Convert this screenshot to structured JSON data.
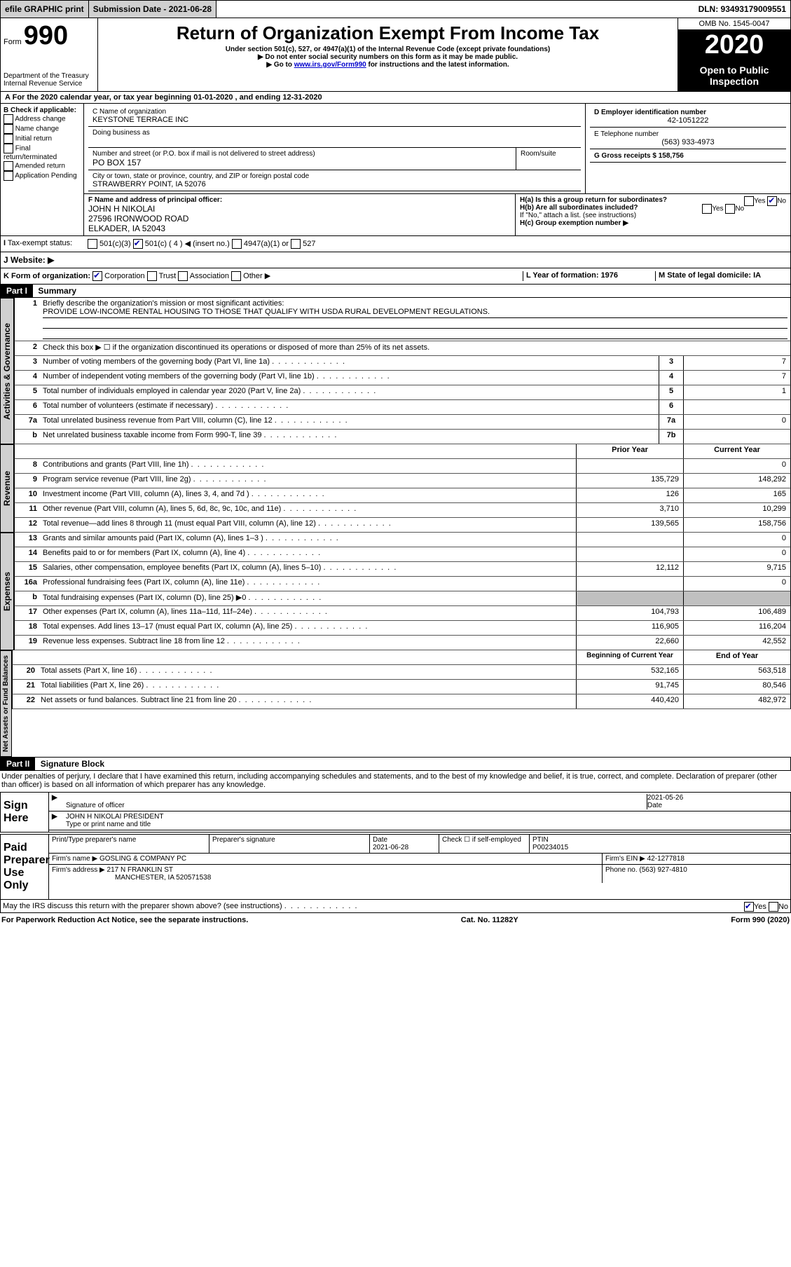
{
  "topbar": {
    "efile": "efile GRAPHIC print",
    "subdate_label": "Submission Date - 2021-06-28",
    "dln": "DLN: 93493179009551"
  },
  "header": {
    "form_label": "Form",
    "form_no": "990",
    "dept": "Department of the Treasury\nInternal Revenue Service",
    "title": "Return of Organization Exempt From Income Tax",
    "subtitle": "Under section 501(c), 527, or 4947(a)(1) of the Internal Revenue Code (except private foundations)",
    "note1": "Do not enter social security numbers on this form as it may be made public.",
    "note2_pre": "Go to ",
    "note2_link": "www.irs.gov/Form990",
    "note2_post": " for instructions and the latest information.",
    "omb": "OMB No. 1545-0047",
    "year": "2020",
    "open": "Open to Public Inspection"
  },
  "sectionA": {
    "period": "For the 2020 calendar year, or tax year beginning 01-01-2020    , and ending 12-31-2020",
    "check_label": "B Check if applicable:",
    "checks": [
      "Address change",
      "Name change",
      "Initial return",
      "Final return/terminated",
      "Amended return",
      "Application Pending"
    ],
    "name_label": "C Name of organization",
    "org_name": "KEYSTONE TERRACE INC",
    "dba_label": "Doing business as",
    "addr_label": "Number and street (or P.O. box if mail is not delivered to street address)",
    "room_label": "Room/suite",
    "addr": "PO BOX 157",
    "city_label": "City or town, state or province, country, and ZIP or foreign postal code",
    "city": "STRAWBERRY POINT, IA  52076",
    "ein_label": "D Employer identification number",
    "ein": "42-1051222",
    "phone_label": "E Telephone number",
    "phone": "(563) 933-4973",
    "gross_label": "G Gross receipts $ 158,756",
    "officer_label": "F  Name and address of principal officer:",
    "officer": "JOHN H NIKOLAI\n27596 IRONWOOD ROAD\nELKADER, IA  52043",
    "ha_label": "H(a)  Is this a group return for subordinates?",
    "hb_label": "H(b)  Are all subordinates included?",
    "h_note": "If \"No,\" attach a list. (see instructions)",
    "hc_label": "H(c)  Group exemption number ▶",
    "tax_exempt": "Tax-exempt status:",
    "insert": "(insert no.)",
    "website": "J   Website: ▶",
    "k_label": "K Form of organization:",
    "k_opts": [
      "Corporation",
      "Trust",
      "Association",
      "Other ▶"
    ],
    "l_label": "L Year of formation: 1976",
    "m_label": "M State of legal domicile: IA"
  },
  "part1_label": "Part I",
  "part1_title": "Summary",
  "tabs": {
    "gov": "Activities & Governance",
    "rev": "Revenue",
    "exp": "Expenses",
    "net": "Net Assets or Fund Balances"
  },
  "summary": {
    "line1_label": "Briefly describe the organization's mission or most significant activities:",
    "line1_text": "PROVIDE LOW-INCOME RENTAL HOUSING TO THOSE THAT QUALIFY WITH USDA RURAL DEVELOPMENT REGULATIONS.",
    "line2": "Check this box ▶ ☐  if the organization discontinued its operations or disposed of more than 25% of its net assets.",
    "rows_gov": [
      {
        "n": "3",
        "t": "Number of voting members of the governing body (Part VI, line 1a)",
        "box": "3",
        "v": "7"
      },
      {
        "n": "4",
        "t": "Number of independent voting members of the governing body (Part VI, line 1b)",
        "box": "4",
        "v": "7"
      },
      {
        "n": "5",
        "t": "Total number of individuals employed in calendar year 2020 (Part V, line 2a)",
        "box": "5",
        "v": "1"
      },
      {
        "n": "6",
        "t": "Total number of volunteers (estimate if necessary)",
        "box": "6",
        "v": ""
      },
      {
        "n": "7a",
        "t": "Total unrelated business revenue from Part VIII, column (C), line 12",
        "box": "7a",
        "v": "0"
      },
      {
        "n": "b",
        "t": "Net unrelated business taxable income from Form 990-T, line 39",
        "box": "7b",
        "v": ""
      }
    ],
    "col_prior": "Prior Year",
    "col_curr": "Current Year",
    "rows_rev": [
      {
        "n": "8",
        "t": "Contributions and grants (Part VIII, line 1h)",
        "p": "",
        "c": "0"
      },
      {
        "n": "9",
        "t": "Program service revenue (Part VIII, line 2g)",
        "p": "135,729",
        "c": "148,292"
      },
      {
        "n": "10",
        "t": "Investment income (Part VIII, column (A), lines 3, 4, and 7d )",
        "p": "126",
        "c": "165"
      },
      {
        "n": "11",
        "t": "Other revenue (Part VIII, column (A), lines 5, 6d, 8c, 9c, 10c, and 11e)",
        "p": "3,710",
        "c": "10,299"
      },
      {
        "n": "12",
        "t": "Total revenue—add lines 8 through 11 (must equal Part VIII, column (A), line 12)",
        "p": "139,565",
        "c": "158,756"
      }
    ],
    "rows_exp": [
      {
        "n": "13",
        "t": "Grants and similar amounts paid (Part IX, column (A), lines 1–3 )",
        "p": "",
        "c": "0"
      },
      {
        "n": "14",
        "t": "Benefits paid to or for members (Part IX, column (A), line 4)",
        "p": "",
        "c": "0"
      },
      {
        "n": "15",
        "t": "Salaries, other compensation, employee benefits (Part IX, column (A), lines 5–10)",
        "p": "12,112",
        "c": "9,715"
      },
      {
        "n": "16a",
        "t": "Professional fundraising fees (Part IX, column (A), line 11e)",
        "p": "",
        "c": "0"
      },
      {
        "n": "b",
        "t": "Total fundraising expenses (Part IX, column (D), line 25) ▶0",
        "p": "shaded",
        "c": "shaded"
      },
      {
        "n": "17",
        "t": "Other expenses (Part IX, column (A), lines 11a–11d, 11f–24e)",
        "p": "104,793",
        "c": "106,489"
      },
      {
        "n": "18",
        "t": "Total expenses. Add lines 13–17 (must equal Part IX, column (A), line 25)",
        "p": "116,905",
        "c": "116,204"
      },
      {
        "n": "19",
        "t": "Revenue less expenses. Subtract line 18 from line 12",
        "p": "22,660",
        "c": "42,552"
      }
    ],
    "col_beg": "Beginning of Current Year",
    "col_end": "End of Year",
    "rows_net": [
      {
        "n": "20",
        "t": "Total assets (Part X, line 16)",
        "p": "532,165",
        "c": "563,518"
      },
      {
        "n": "21",
        "t": "Total liabilities (Part X, line 26)",
        "p": "91,745",
        "c": "80,546"
      },
      {
        "n": "22",
        "t": "Net assets or fund balances. Subtract line 21 from line 20",
        "p": "440,420",
        "c": "482,972"
      }
    ]
  },
  "part2_label": "Part II",
  "part2_title": "Signature Block",
  "sig": {
    "penalty": "Under penalties of perjury, I declare that I have examined this return, including accompanying schedules and statements, and to the best of my knowledge and belief, it is true, correct, and complete. Declaration of preparer (other than officer) is based on all information of which preparer has any knowledge.",
    "sign_here": "Sign Here",
    "sig_officer": "Signature of officer",
    "sig_date": "2021-05-26",
    "date_label": "Date",
    "officer_name": "JOHN H NIKOLAI  PRESIDENT",
    "type_label": "Type or print name and title",
    "paid": "Paid Preparer Use Only",
    "prep_name_label": "Print/Type preparer's name",
    "prep_sig_label": "Preparer's signature",
    "prep_date_label": "Date",
    "prep_date": "2021-06-28",
    "check_self": "Check ☐  if self-employed",
    "ptin_label": "PTIN",
    "ptin": "P00234015",
    "firm_name_label": "Firm's name     ▶",
    "firm_name": "GOSLING & COMPANY PC",
    "firm_ein_label": "Firm's EIN ▶",
    "firm_ein": "42-1277818",
    "firm_addr_label": "Firm's address ▶",
    "firm_addr1": "217 N FRANKLIN ST",
    "firm_addr2": "MANCHESTER, IA  520571538",
    "firm_phone_label": "Phone no. (563) 927-4810",
    "discuss": "May the IRS discuss this return with the preparer shown above? (see instructions)"
  },
  "footer": {
    "left": "For Paperwork Reduction Act Notice, see the separate instructions.",
    "mid": "Cat. No. 11282Y",
    "right": "Form 990 (2020)"
  }
}
